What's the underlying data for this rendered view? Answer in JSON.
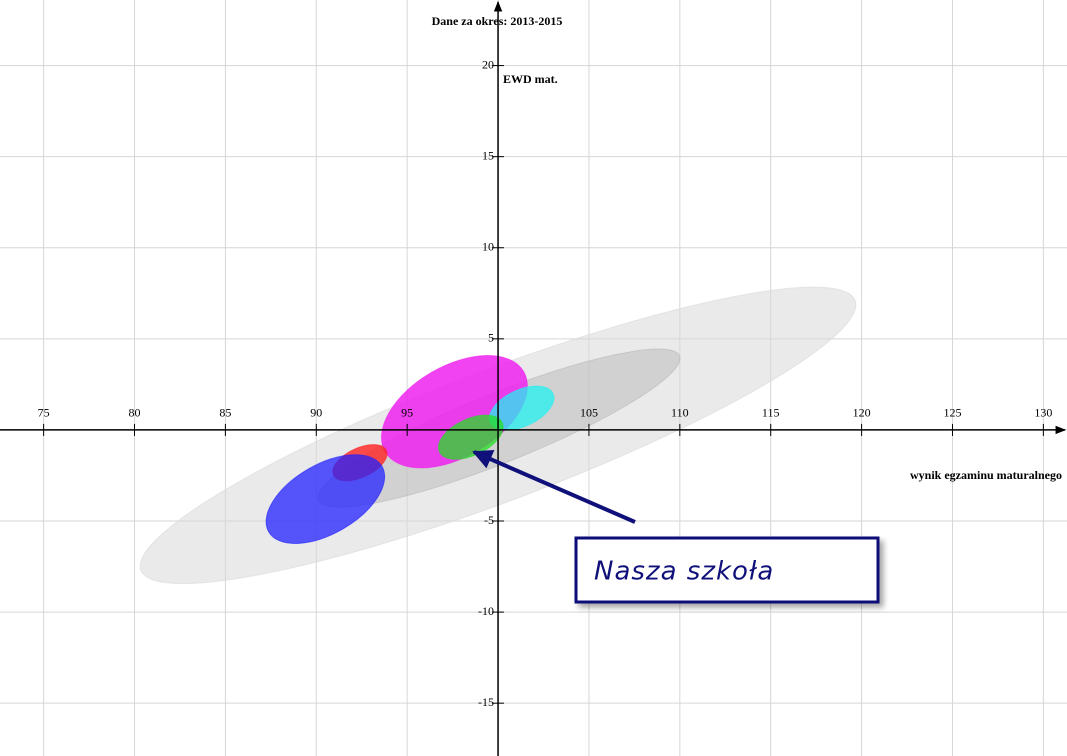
{
  "chart_data": {
    "type": "ellipse",
    "title": "Dane za okres: 2013-2015",
    "x_label": "wynik egzaminu maturalnego",
    "y_label": "EWD mat.",
    "annotation": "Nasza szkoła",
    "xlim": [
      72.6,
      131.3
    ],
    "ylim": [
      -17.9,
      23.6
    ],
    "xticks": [
      75,
      80,
      85,
      90,
      95,
      105,
      110,
      115,
      120,
      125,
      130
    ],
    "yticks": [
      -15,
      -10,
      -5,
      5,
      10,
      15,
      20
    ],
    "grid_x": [
      75,
      80,
      85,
      90,
      95,
      100,
      105,
      110,
      115,
      120,
      125,
      130
    ],
    "grid_y": [
      -15,
      -10,
      -5,
      0,
      5,
      10,
      15,
      20
    ],
    "axes_origin": [
      100,
      0
    ],
    "grid": true,
    "ellipses": [
      {
        "x": 100,
        "y": -0.3,
        "rx": 21,
        "ry": 3.6,
        "angle": 20.7,
        "color": "#d8d8d8",
        "opacity": 0.55
      },
      {
        "x": 100.05,
        "y": 0.1,
        "rx": 10.7,
        "ry": 1.9,
        "angle": 21.8,
        "color": "#b8b8b8",
        "opacity": 0.5
      },
      {
        "x": 97.6,
        "y": 1.0,
        "rx": 4.4,
        "ry": 2.5,
        "angle": 30,
        "color": "#ee22ee",
        "opacity": 0.85
      },
      {
        "x": 101.3,
        "y": 1.2,
        "rx": 1.9,
        "ry": 1.0,
        "angle": 25,
        "color": "#22f0f0",
        "opacity": 0.75
      },
      {
        "x": 98.5,
        "y": -0.4,
        "rx": 1.9,
        "ry": 1.0,
        "angle": 25,
        "color": "#22e022",
        "opacity": 0.75
      },
      {
        "x": 92.4,
        "y": -1.8,
        "rx": 1.6,
        "ry": 0.8,
        "angle": 25,
        "color": "#ff2222",
        "opacity": 0.8
      },
      {
        "x": 90.5,
        "y": -3.8,
        "rx": 3.6,
        "ry": 1.9,
        "angle": 30,
        "color": "#2222ff",
        "opacity": 0.75
      }
    ]
  }
}
